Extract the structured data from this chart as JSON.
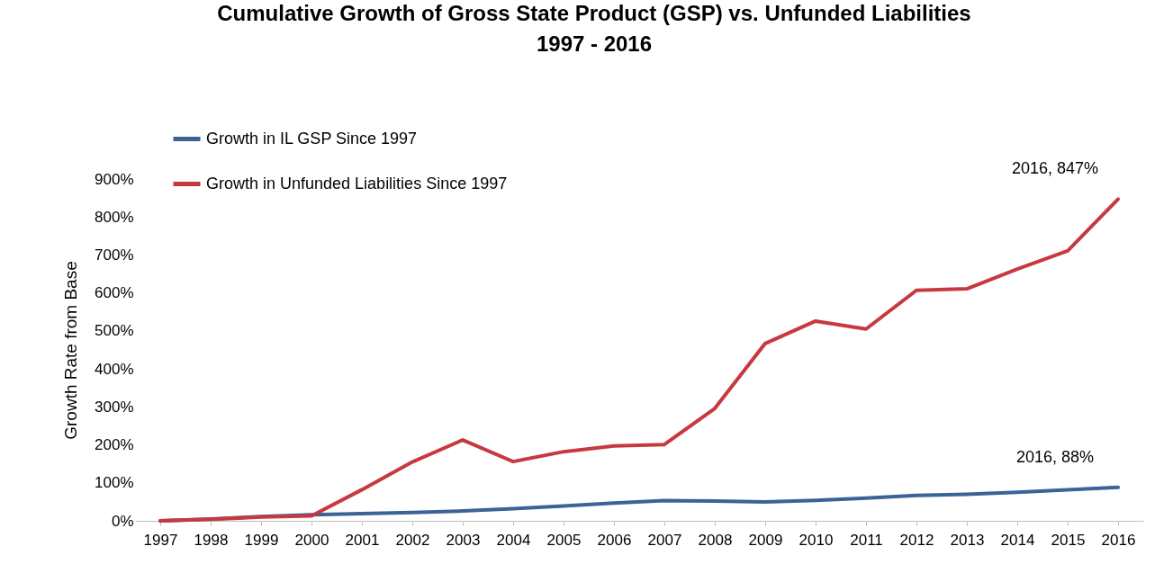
{
  "chart_data": {
    "type": "line",
    "title": "Cumulative Growth of Gross State Product (GSP) vs. Unfunded Liabilities",
    "subtitle": "1997 - 2016",
    "ylabel": "Growth Rate from Base",
    "categories": [
      "1997",
      "1998",
      "1999",
      "2000",
      "2001",
      "2002",
      "2003",
      "2004",
      "2005",
      "2006",
      "2007",
      "2008",
      "2009",
      "2010",
      "2011",
      "2012",
      "2013",
      "2014",
      "2015",
      "2016"
    ],
    "series": [
      {
        "name": "Growth in IL GSP Since 1997",
        "color": "#3c6296",
        "values": [
          0,
          5,
          11,
          16,
          19,
          22,
          26,
          32,
          39,
          47,
          53,
          52,
          50,
          54,
          60,
          67,
          70,
          75,
          82,
          88
        ]
      },
      {
        "name": "Growth in Unfunded Liabilities Since 1997",
        "color": "#c8393f",
        "values": [
          0,
          4,
          10,
          13,
          82,
          155,
          213,
          156,
          182,
          197,
          201,
          296,
          467,
          526,
          505,
          607,
          611,
          663,
          711,
          847
        ]
      }
    ],
    "ylim": [
      0,
      900
    ],
    "yticks": [
      {
        "value": 0,
        "label": "0%"
      },
      {
        "value": 100,
        "label": "100%"
      },
      {
        "value": 200,
        "label": "200%"
      },
      {
        "value": 300,
        "label": "300%"
      },
      {
        "value": 400,
        "label": "400%"
      },
      {
        "value": 500,
        "label": "500%"
      },
      {
        "value": 600,
        "label": "600%"
      },
      {
        "value": 700,
        "label": "700%"
      },
      {
        "value": 800,
        "label": "800%"
      },
      {
        "value": 900,
        "label": "900%"
      }
    ],
    "annotations": [
      {
        "text": "2016, 847%",
        "x": "2016",
        "y": 847
      },
      {
        "text": "2016, 88%",
        "x": "2016",
        "y": 88
      }
    ],
    "grid": false,
    "legend": "top left",
    "marker": "none",
    "line_style": "solid"
  }
}
